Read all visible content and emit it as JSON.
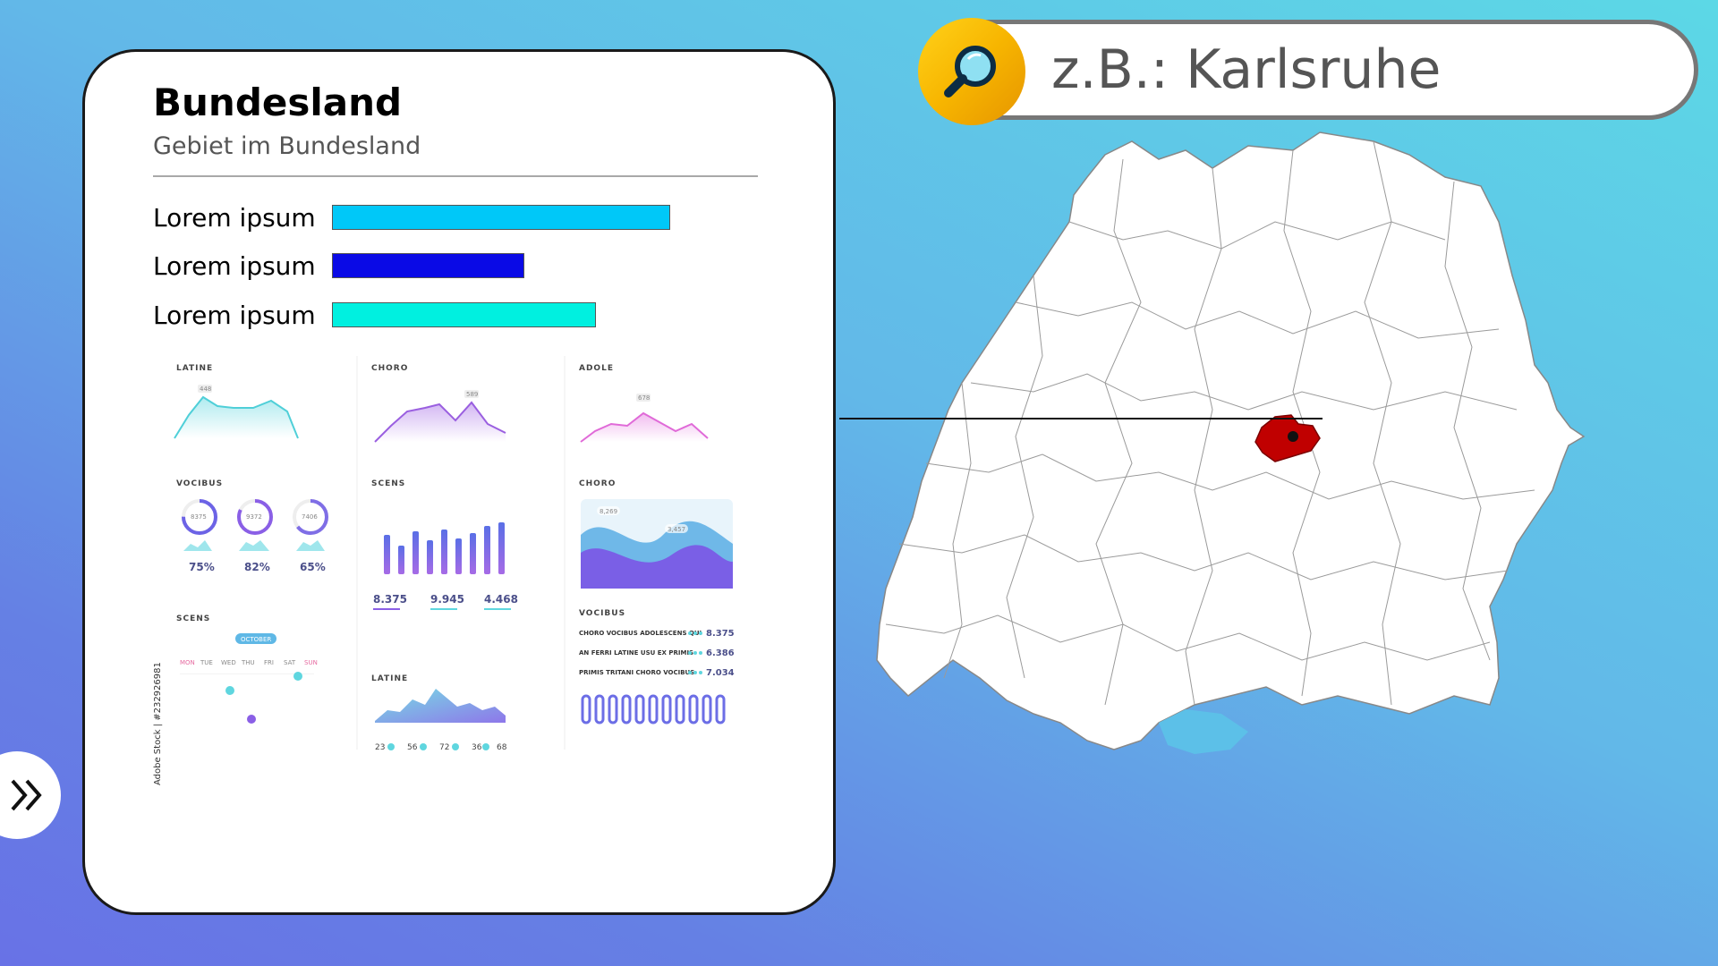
{
  "card": {
    "title": "Bundesland",
    "subtitle": "Gebiet im Bundesland",
    "stats": [
      {
        "label": "Lorem ipsum",
        "value": 1.0,
        "color": "#00c8f8"
      },
      {
        "label": "Lorem ipsum",
        "value": 0.57,
        "color": "#0a0ae6"
      },
      {
        "label": "Lorem ipsum",
        "value": 0.78,
        "color": "#00f0e0"
      }
    ]
  },
  "mini_dashboard": {
    "labels": {
      "latine": "LATINE",
      "choro": "CHORO",
      "adole": "ADOLE",
      "vocibus": "VOCIBUS",
      "scens": "SCENS",
      "choro2": "CHORO",
      "scens2": "SCENS",
      "latine2": "LATINE",
      "vocibus2": "VOCIBUS"
    },
    "peaks": {
      "latine": "448",
      "choro": "589",
      "adole": "678"
    },
    "rings": [
      {
        "value": "8375",
        "percent": "75%"
      },
      {
        "value": "9372",
        "percent": "82%"
      },
      {
        "value": "7406",
        "percent": "65%"
      }
    ],
    "totals": [
      "8.375",
      "9.945",
      "4.468"
    ],
    "area_tags": [
      "8,269",
      "3,457"
    ],
    "list": [
      {
        "label": "CHORO VOCIBUS ADOLESCENS QUI",
        "value": "8.375"
      },
      {
        "label": "AN FERRI LATINE USU EX PRIMIS",
        "value": "6.386"
      },
      {
        "label": "PRIMIS TRITANI CHORO VOCIBUS",
        "value": "7.034"
      }
    ],
    "calendar": {
      "month": "OCTOBER",
      "days": [
        "MON",
        "TUE",
        "WED",
        "THU",
        "FRI",
        "SAT",
        "SUN"
      ]
    },
    "bubbles": [
      "23",
      "56",
      "72",
      "36",
      "68"
    ],
    "watermark": "Adobe Stock | #232926981"
  },
  "search": {
    "placeholder": "z.B.: Karlsruhe",
    "icon": "magnifier-icon"
  },
  "map": {
    "region_color": "#c00000",
    "land_color": "#ffffff",
    "border_color": "#888888"
  },
  "next": {
    "icon": "double-chevron-right-icon"
  }
}
